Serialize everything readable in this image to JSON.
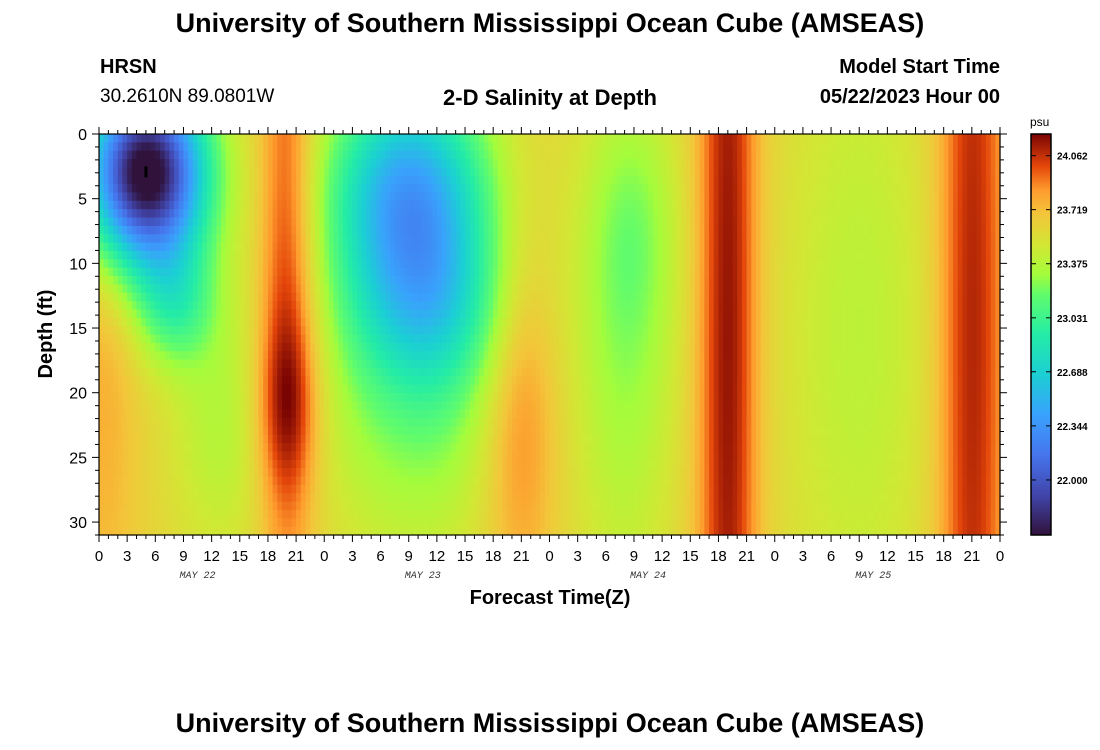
{
  "header": {
    "title_top": "University of Southern Mississippi Ocean Cube (AMSEAS)",
    "title_bottom": "University of Southern Mississippi Ocean Cube (AMSEAS)",
    "station": "HRSN",
    "coords": "30.2610N  89.0801W",
    "plot_title": "2-D Salinity at Depth",
    "model_label": "Model Start Time",
    "model_time": "05/22/2023 Hour 00"
  },
  "chart_data": {
    "type": "heatmap",
    "title": "2-D Salinity at Depth",
    "xlabel": "Forecast Time(Z)",
    "ylabel": "Depth (ft)",
    "x_tick_labels": [
      "0",
      "3",
      "6",
      "9",
      "12",
      "15",
      "18",
      "21",
      "0",
      "3",
      "6",
      "9",
      "12",
      "15",
      "18",
      "21",
      "0",
      "3",
      "6",
      "9",
      "12",
      "15",
      "18",
      "21",
      "0",
      "3",
      "6",
      "9",
      "12",
      "15",
      "18",
      "21",
      "0"
    ],
    "x_hours": [
      0,
      3,
      6,
      9,
      12,
      15,
      18,
      21,
      24,
      27,
      30,
      33,
      36,
      39,
      42,
      45,
      48,
      51,
      54,
      57,
      60,
      63,
      66,
      69,
      72,
      75,
      78,
      81,
      84,
      87,
      90,
      93,
      96
    ],
    "day_labels": [
      "MAY 22",
      "MAY 23",
      "MAY 24",
      "MAY 25"
    ],
    "xlim": [
      0,
      96
    ],
    "y_ticks": [
      0,
      5,
      10,
      15,
      20,
      25,
      30
    ],
    "y_tick_labels": [
      "0",
      "5",
      "10",
      "15",
      "20",
      "25",
      "30"
    ],
    "ylim": [
      0,
      31
    ],
    "colorbar": {
      "unit": "psu",
      "ticks": [
        22.0,
        22.344,
        22.688,
        23.031,
        23.375,
        23.719,
        24.062
      ],
      "tick_labels": [
        "22.000",
        "22.344",
        "22.688",
        "23.031",
        "23.375",
        "23.719",
        "24.062"
      ],
      "range": [
        21.65,
        24.2
      ]
    },
    "features": [
      {
        "hour": 5,
        "depth": 3,
        "value": 21.7
      },
      {
        "hour": 33,
        "depth": 5,
        "value": 22.5
      },
      {
        "hour": 20,
        "depth": 21,
        "value": 24.2
      },
      {
        "hour": 67,
        "depth": 15,
        "value": 24.2
      },
      {
        "hour": 93,
        "depth": 15,
        "value": 24.15
      }
    ]
  }
}
